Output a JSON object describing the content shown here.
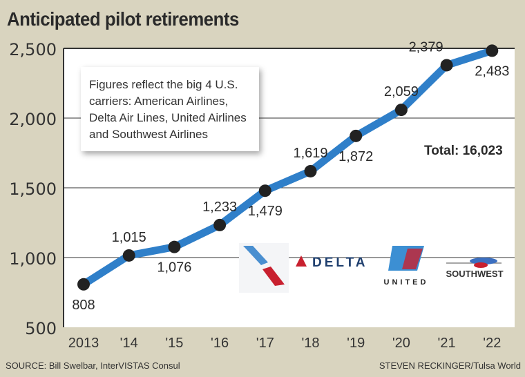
{
  "chart_data": {
    "type": "line",
    "title": "Anticipated pilot retirements",
    "categories": [
      "2013",
      "'14",
      "'15",
      "'16",
      "'17",
      "'18",
      "'19",
      "'20",
      "'21",
      "'22"
    ],
    "values": [
      808,
      1015,
      1076,
      1233,
      1479,
      1619,
      1872,
      2059,
      2379,
      2483
    ],
    "data_labels": [
      "808",
      "1,015",
      "1,076",
      "1,233",
      "1,479",
      "1,619",
      "1,872",
      "2,059",
      "2,379",
      "2,483"
    ],
    "ylim": [
      500,
      2500
    ],
    "yticks": [
      500,
      1000,
      1500,
      2000,
      2500
    ],
    "ytick_labels": [
      "500",
      "1,000",
      "1,500",
      "2,000",
      "2,500"
    ],
    "grid": "horizontal",
    "line_color": "#2f7fc9",
    "marker_color": "#222222",
    "annotation": "Figures reflect the big 4 U.S. carriers: American Airlines, Delta Air Lines, United Airlines and Southwest Airlines",
    "total": "Total: 16,023"
  },
  "logos": [
    "American Airlines",
    "DELTA",
    "UNITED",
    "SOUTHWEST"
  ],
  "footer": {
    "source": "SOURCE: Bill Swelbar, InterVISTAS Consul",
    "credit": "STEVEN RECKINGER/Tulsa World"
  }
}
